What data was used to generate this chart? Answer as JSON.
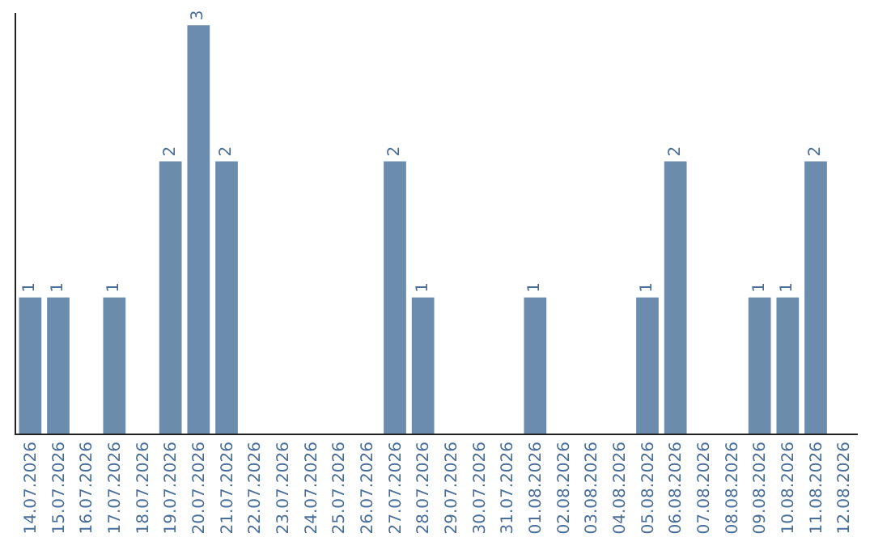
{
  "chart_data": {
    "type": "bar",
    "categories": [
      "14.07.2026",
      "15.07.2026",
      "16.07.2026",
      "17.07.2026",
      "18.07.2026",
      "19.07.2026",
      "20.07.2026",
      "21.07.2026",
      "22.07.2026",
      "23.07.2026",
      "24.07.2026",
      "25.07.2026",
      "26.07.2026",
      "27.07.2026",
      "28.07.2026",
      "29.07.2026",
      "30.07.2026",
      "31.07.2026",
      "01.08.2026",
      "02.08.2026",
      "03.08.2026",
      "04.08.2026",
      "05.08.2026",
      "06.08.2026",
      "07.08.2026",
      "08.08.2026",
      "09.08.2026",
      "10.08.2026",
      "11.08.2026",
      "12.08.2026"
    ],
    "values": [
      1,
      1,
      0,
      1,
      0,
      2,
      3,
      2,
      0,
      0,
      0,
      0,
      0,
      2,
      1,
      0,
      0,
      0,
      1,
      0,
      0,
      0,
      1,
      2,
      0,
      0,
      1,
      1,
      2,
      0
    ],
    "value_labels": [
      "1",
      "1",
      null,
      "1",
      null,
      "2",
      "3",
      "2",
      null,
      null,
      null,
      null,
      null,
      "2",
      "1",
      null,
      null,
      null,
      "1",
      null,
      null,
      null,
      "1",
      "2",
      null,
      null,
      "1",
      "1",
      "2",
      null
    ],
    "color": "#6b8cac",
    "legend": false,
    "tick_labels": "x"
  }
}
